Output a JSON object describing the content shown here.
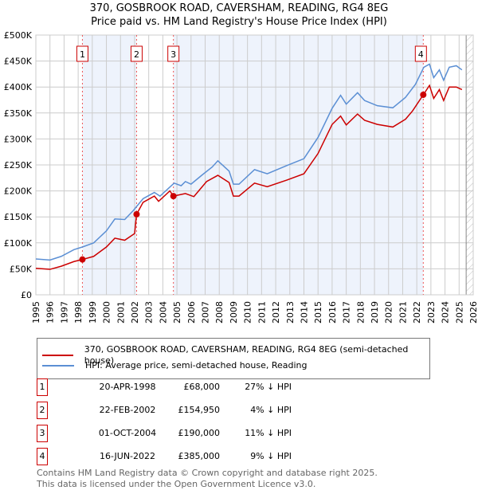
{
  "title_line1": "370, GOSBROOK ROAD, CAVERSHAM, READING, RG4 8EG",
  "title_line2": "Price paid vs. HM Land Registry's House Price Index (HPI)",
  "chart_data": {
    "type": "line",
    "xlim": [
      1995,
      2026
    ],
    "ylim": [
      0,
      500000
    ],
    "yticks": [
      0,
      50000,
      100000,
      150000,
      200000,
      250000,
      300000,
      350000,
      400000,
      450000,
      500000
    ],
    "ytick_labels": [
      "£0",
      "£50K",
      "£100K",
      "£150K",
      "£200K",
      "£250K",
      "£300K",
      "£350K",
      "£400K",
      "£450K",
      "£500K"
    ],
    "xticks": [
      1995,
      1996,
      1997,
      1998,
      1999,
      2000,
      2001,
      2002,
      2003,
      2004,
      2005,
      2006,
      2007,
      2008,
      2009,
      2010,
      2011,
      2012,
      2013,
      2014,
      2015,
      2016,
      2017,
      2018,
      2019,
      2020,
      2021,
      2022,
      2023,
      2024,
      2025,
      2026
    ],
    "grid": true,
    "data_end": 2025.5,
    "series": [
      {
        "name": "370, GOSBROOK ROAD, CAVERSHAM, READING, RG4 8EG (semi-detached house)",
        "color": "#cc0000",
        "x": [
          1995.0,
          1996.0,
          1996.8,
          1997.7,
          1998.3,
          1999.1,
          2000.0,
          2000.6,
          2001.3,
          2002.0,
          2002.14,
          2002.6,
          2003.4,
          2003.7,
          2004.5,
          2004.75,
          2005.6,
          2006.2,
          2007.1,
          2007.9,
          2008.7,
          2009.0,
          2009.4,
          2010.5,
          2011.4,
          2012.8,
          2014.0,
          2015.0,
          2016.0,
          2016.6,
          2017.0,
          2017.8,
          2018.3,
          2019.2,
          2020.3,
          2021.2,
          2021.7,
          2022.46,
          2022.9,
          2023.2,
          2023.6,
          2023.9,
          2024.3,
          2024.8,
          2025.2
        ],
        "y": [
          51000,
          49000,
          55000,
          64000,
          68000,
          74000,
          92000,
          109000,
          105000,
          118000,
          154950,
          178000,
          190000,
          180000,
          200000,
          190000,
          195000,
          189000,
          218000,
          230000,
          216000,
          190000,
          190000,
          215000,
          208000,
          221000,
          233000,
          272000,
          328000,
          344000,
          327000,
          348000,
          336000,
          328000,
          323000,
          338000,
          354000,
          385000,
          403000,
          378000,
          395000,
          374000,
          400000,
          400000,
          395000
        ]
      },
      {
        "name": "HPI: Average price, semi-detached house, Reading",
        "color": "#5b8fd4",
        "x": [
          1995.0,
          1996.0,
          1996.8,
          1997.7,
          1998.3,
          1999.1,
          2000.0,
          2000.6,
          2001.3,
          2001.9,
          2002.6,
          2003.4,
          2003.8,
          2004.8,
          2005.3,
          2005.6,
          2006.0,
          2006.8,
          2007.5,
          2007.9,
          2008.7,
          2009.0,
          2009.4,
          2010.5,
          2011.4,
          2012.8,
          2014.0,
          2015.0,
          2016.0,
          2016.6,
          2017.0,
          2017.8,
          2018.3,
          2019.2,
          2020.3,
          2021.2,
          2021.9,
          2022.5,
          2022.9,
          2023.2,
          2023.6,
          2023.9,
          2024.3,
          2024.8,
          2025.2
        ],
        "y": [
          69000,
          67000,
          74000,
          87000,
          92000,
          100000,
          123000,
          146000,
          145000,
          162000,
          185000,
          197000,
          190000,
          215000,
          210000,
          218000,
          213000,
          231000,
          246000,
          258000,
          238000,
          213000,
          213000,
          241000,
          233000,
          249000,
          262000,
          303000,
          359000,
          384000,
          367000,
          389000,
          374000,
          364000,
          360000,
          380000,
          405000,
          438000,
          444000,
          418000,
          433000,
          413000,
          438000,
          441000,
          433000
        ]
      }
    ],
    "sales": [
      {
        "label": "1",
        "x": 2002.14,
        "x_sale": 1998.3,
        "y": 68000
      },
      {
        "label": "2",
        "x_sale": 2002.14,
        "y": 154950
      },
      {
        "label": "3",
        "x_sale": 2004.75,
        "y": 190000
      },
      {
        "label": "4",
        "x_sale": 2022.46,
        "y": 385000
      }
    ],
    "shaded_ranges": [
      [
        1998.3,
        2002.14
      ],
      [
        2004.75,
        2022.46
      ]
    ]
  },
  "legend": {
    "property": "370, GOSBROOK ROAD, CAVERSHAM, READING, RG4 8EG (semi-detached house)",
    "hpi": "HPI: Average price, semi-detached house, Reading"
  },
  "transactions": [
    {
      "num": "1",
      "date": "20-APR-1998",
      "price": "£68,000",
      "hpi": "27% ↓ HPI"
    },
    {
      "num": "2",
      "date": "22-FEB-2002",
      "price": "£154,950",
      "hpi": "4% ↓ HPI"
    },
    {
      "num": "3",
      "date": "01-OCT-2004",
      "price": "£190,000",
      "hpi": "11% ↓ HPI"
    },
    {
      "num": "4",
      "date": "16-JUN-2022",
      "price": "£385,000",
      "hpi": "9% ↓ HPI"
    }
  ],
  "footer": {
    "line1": "Contains HM Land Registry data © Crown copyright and database right 2025.",
    "line2": "This data is licensed under the Open Government Licence v3.0."
  }
}
